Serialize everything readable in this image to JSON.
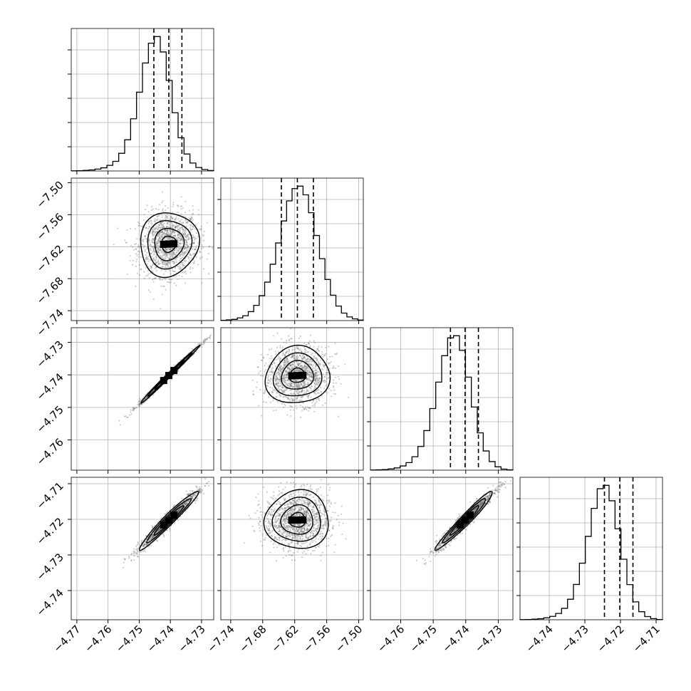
{
  "chart_data": {
    "type": "corner",
    "grid": true,
    "quantiles": [
      0.16,
      0.5,
      0.84
    ],
    "parameters": [
      {
        "range": [
          -4.7718,
          -4.7261
        ],
        "ticks": [
          -4.77,
          -4.76,
          -4.75,
          -4.74,
          -4.73
        ],
        "tick_labels": [
          "−4.77",
          "−4.76",
          "−4.75",
          "−4.74",
          "−4.73"
        ],
        "median": -4.7405,
        "q16": -4.7453,
        "q84": -4.7363,
        "sigma": 0.0047,
        "hist_bins_edge_start": -4.7718,
        "hist_counts": [
          1,
          2,
          4,
          7,
          13,
          22,
          39,
          67,
          123,
          217,
          363,
          548,
          751,
          889,
          935,
          828,
          630,
          405,
          231,
          118,
          55,
          24,
          10,
          3
        ]
      },
      {
        "range": [
          -7.7585,
          -7.4914
        ],
        "ticks": [
          -7.5,
          -7.56,
          -7.62,
          -7.68,
          -7.74
        ],
        "tick_labels": [
          "−7.50",
          "−7.56",
          "−7.62",
          "−7.68",
          "−7.74"
        ],
        "bottom_tick_labels": [
          "−7.74",
          "−7.68",
          "−7.62",
          "−7.56",
          "−7.50"
        ],
        "median": -7.615,
        "q16": -7.645,
        "q84": -7.585,
        "sigma": 0.03,
        "hist_bins_edge_start": -7.7585,
        "hist_counts": [
          1,
          3,
          5,
          11,
          20,
          37,
          63,
          103,
          159,
          233,
          321,
          412,
          495,
          546,
          556,
          520,
          446,
          352,
          256,
          170,
          105,
          60,
          31,
          15,
          7,
          2
        ]
      },
      {
        "range": [
          -4.7693,
          -4.7255
        ],
        "ticks": [
          -4.73,
          -4.74,
          -4.75,
          -4.76
        ],
        "tick_labels": [
          "−4.73",
          "−4.74",
          "−4.75",
          "−4.76"
        ],
        "bottom_tick_labels": [
          "−4.76",
          "−4.75",
          "−4.74",
          "−4.73"
        ],
        "median": -4.7402,
        "q16": -4.7447,
        "q84": -4.7361,
        "sigma": 0.0044,
        "hist_bins_edge_start": -4.7693,
        "hist_counts": [
          1,
          2,
          4,
          8,
          15,
          28,
          50,
          89,
          157,
          262,
          408,
          583,
          758,
          876,
          890,
          793,
          616,
          418,
          247,
          127,
          57,
          22,
          7,
          2
        ]
      },
      {
        "range": [
          -4.7482,
          -4.7082
        ],
        "ticks": [
          -4.71,
          -4.72,
          -4.73,
          -4.74
        ],
        "tick_labels": [
          "−4.71",
          "−4.72",
          "−4.73",
          "−4.74"
        ],
        "bottom_tick_labels": [
          "−4.74",
          "−4.73",
          "−4.72",
          "−4.71"
        ],
        "median": -4.7202,
        "q16": -4.7245,
        "q84": -4.7165,
        "sigma": 0.0041,
        "hist_bins_edge_start": -4.7482,
        "hist_counts": [
          1,
          2,
          4,
          7,
          13,
          23,
          43,
          78,
          140,
          241,
          386,
          569,
          760,
          894,
          917,
          812,
          621,
          413,
          240,
          122,
          55,
          22,
          8,
          2
        ]
      }
    ],
    "correlations": {
      "1-0": 0.05,
      "2-0": 0.995,
      "2-1": 0.06,
      "3-0": 0.97,
      "3-1": 0.02,
      "3-2": 0.97
    }
  }
}
